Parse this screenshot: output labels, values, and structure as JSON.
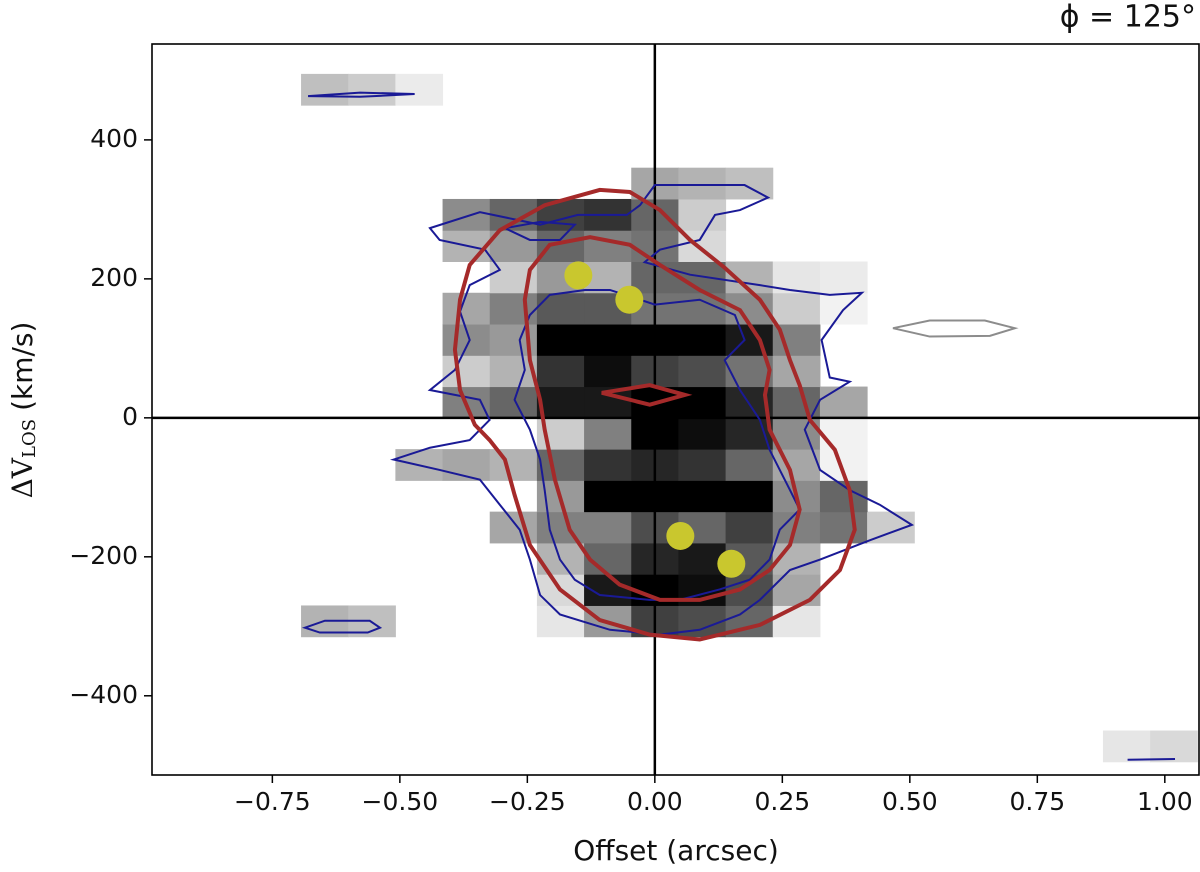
{
  "chart_data": {
    "type": "heatmap",
    "title": "ϕ = 125°",
    "xlabel": "Offset (arcsec)",
    "ylabel": {
      "main": "ΔV",
      "sub": "LOS",
      "unit": "(km/s)"
    },
    "xlim": [
      -0.986,
      1.069
    ],
    "ylim": [
      -514,
      538
    ],
    "xticks": [
      {
        "value": -0.75,
        "label": "−0.75"
      },
      {
        "value": -0.5,
        "label": "−0.50"
      },
      {
        "value": -0.25,
        "label": "−0.25"
      },
      {
        "value": 0,
        "label": "0.00"
      },
      {
        "value": 0.25,
        "label": "0.25"
      },
      {
        "value": 0.5,
        "label": "0.50"
      },
      {
        "value": 0.75,
        "label": "0.75"
      },
      {
        "value": 1,
        "label": "1.00"
      }
    ],
    "yticks": [
      {
        "value": -400,
        "label": "−400"
      },
      {
        "value": -200,
        "label": "−200"
      },
      0,
      200,
      400
    ],
    "cmap": "Greys",
    "reference_lines": {
      "x": [
        0
      ],
      "y": [
        0
      ]
    },
    "cells": {
      "xbins": [
        -0.69375,
        -0.60125,
        -0.50875,
        -0.41625,
        -0.32375,
        -0.23125,
        -0.13875,
        -0.04625,
        0.04625,
        0.13875,
        0.23125,
        0.32375,
        0.41625,
        0.50875,
        0.60125,
        0.69375,
        0.78625,
        0.87875,
        0.97125,
        1.06375
      ],
      "ybins": [
        -495,
        -450,
        -405,
        -360,
        -315,
        -270,
        -225,
        -180,
        -135,
        -90,
        -45,
        0,
        45,
        90,
        135,
        180,
        225,
        270,
        315,
        360,
        405,
        450,
        495
      ],
      "z": [
        [
          null,
          null,
          null,
          null,
          null,
          null,
          null,
          null,
          null,
          null,
          null,
          null,
          null,
          null,
          null,
          null,
          null,
          0.1,
          0.15
        ],
        [
          null,
          null,
          null,
          null,
          null,
          null,
          null,
          null,
          null,
          null,
          null,
          null,
          null,
          null,
          null,
          null,
          null,
          null,
          null
        ],
        [
          null,
          null,
          null,
          null,
          null,
          null,
          null,
          null,
          null,
          null,
          null,
          null,
          null,
          null,
          null,
          null,
          null,
          null,
          null
        ],
        [
          null,
          null,
          null,
          null,
          null,
          null,
          null,
          null,
          null,
          null,
          null,
          null,
          null,
          null,
          null,
          null,
          null,
          null,
          null
        ],
        [
          0.3,
          0.25,
          null,
          null,
          null,
          0.1,
          0.4,
          0.75,
          0.7,
          0.6,
          0.1,
          null,
          null,
          null,
          null,
          null,
          null,
          null,
          null
        ],
        [
          null,
          null,
          null,
          null,
          null,
          0.15,
          0.9,
          1,
          0.95,
          0.7,
          0.35,
          null,
          null,
          null,
          null,
          null,
          null,
          null,
          null
        ],
        [
          null,
          null,
          null,
          null,
          null,
          0.3,
          0.6,
          0.85,
          0.9,
          0.65,
          0.3,
          null,
          null,
          null,
          null,
          null,
          null,
          null,
          null
        ],
        [
          null,
          null,
          null,
          null,
          0.35,
          0.5,
          0.5,
          0.7,
          0.6,
          0.75,
          0.5,
          0.55,
          0.2,
          null,
          null,
          null,
          null,
          null,
          null
        ],
        [
          null,
          null,
          null,
          null,
          null,
          0.4,
          1,
          1,
          1,
          1,
          0.45,
          0.6,
          null,
          null,
          null,
          null,
          null,
          null,
          null
        ],
        [
          null,
          null,
          0.3,
          0.35,
          0.3,
          0.6,
          0.8,
          0.85,
          0.8,
          0.6,
          0.35,
          0.05,
          null,
          null,
          null,
          null,
          null,
          null,
          null
        ],
        [
          null,
          null,
          null,
          null,
          null,
          0.2,
          0.5,
          1,
          0.95,
          0.85,
          0.45,
          0.05,
          null,
          null,
          null,
          null,
          null,
          null,
          null
        ],
        [
          null,
          null,
          null,
          0.5,
          0.6,
          0.9,
          0.9,
          1,
          1,
          0.85,
          0.6,
          0.35,
          null,
          null,
          null,
          null,
          null,
          null,
          null
        ],
        [
          null,
          null,
          null,
          0.2,
          0.3,
          0.8,
          0.95,
          0.75,
          0.7,
          0.55,
          0.35,
          null,
          null,
          null,
          null,
          null,
          null,
          null,
          null
        ],
        [
          null,
          null,
          null,
          0.45,
          0.4,
          1,
          1,
          1,
          1,
          0.9,
          0.5,
          null,
          null,
          null,
          null,
          null,
          null,
          null,
          null
        ],
        [
          null,
          null,
          null,
          0.35,
          0.5,
          0.65,
          0.65,
          0.55,
          0.55,
          0.45,
          0.2,
          0.05,
          null,
          null,
          null,
          null,
          null,
          null,
          null
        ],
        [
          null,
          null,
          null,
          null,
          0.2,
          0.4,
          0.3,
          0.6,
          0.6,
          0.3,
          0.1,
          0.08,
          null,
          null,
          null,
          null,
          null,
          null,
          null
        ],
        [
          null,
          null,
          null,
          0.3,
          0.4,
          0.6,
          0.5,
          0.55,
          0.15,
          null,
          null,
          null,
          null,
          null,
          null,
          null,
          null,
          null,
          null
        ],
        [
          null,
          null,
          null,
          0.45,
          0.6,
          0.75,
          0.8,
          0.6,
          0.2,
          null,
          null,
          null,
          null,
          null,
          null,
          null,
          null,
          null,
          null
        ],
        [
          null,
          null,
          null,
          null,
          null,
          null,
          null,
          0.35,
          0.3,
          0.25,
          null,
          null,
          null,
          null,
          null,
          null,
          null,
          null,
          null
        ],
        [
          null,
          null,
          null,
          null,
          null,
          null,
          null,
          null,
          null,
          null,
          null,
          null,
          null,
          null,
          null,
          null,
          null,
          null,
          null
        ],
        [
          null,
          null,
          null,
          null,
          null,
          null,
          null,
          null,
          null,
          null,
          null,
          null,
          null,
          null,
          null,
          null,
          null,
          null,
          null
        ],
        [
          0.25,
          0.2,
          0.08,
          null,
          null,
          null,
          null,
          null,
          null,
          null,
          null,
          null,
          null,
          null,
          null,
          null,
          null,
          null,
          null
        ]
      ]
    },
    "contours": [
      {
        "color": "#1a1a96",
        "linewidth": 2,
        "x": [
          -0.441,
          -0.343,
          -0.225,
          -0.151,
          -0.055,
          -0.029,
          0,
          0.088,
          0.176,
          0.222,
          0.167,
          0.118,
          0.088,
          0.01,
          -0.02,
          0.069,
          0.206,
          0.265,
          0.343,
          0.406,
          0.369,
          0.327,
          0.343,
          0.382,
          0.324,
          0.294,
          0.324,
          0.382,
          0.441,
          0.504,
          0.422,
          0.324,
          0.265,
          0.206,
          0.167,
          0.088,
          0.01,
          -0.088,
          -0.186,
          -0.225,
          -0.245,
          -0.265,
          -0.304,
          -0.343,
          -0.422,
          -0.512,
          -0.441,
          -0.363,
          -0.324,
          -0.343,
          -0.441,
          -0.392,
          -0.363,
          -0.382,
          -0.363,
          -0.304,
          -0.333,
          -0.422
        ],
        "y": [
          273,
          296,
          278,
          292,
          292,
          306,
          335,
          335,
          335,
          317,
          299,
          292,
          256,
          242,
          224,
          206,
          191,
          184,
          177,
          180,
          155,
          112,
          58,
          52,
          26,
          -17,
          -75,
          -104,
          -125,
          -154,
          -176,
          -204,
          -219,
          -262,
          -283,
          -305,
          -312,
          -305,
          -283,
          -255,
          -204,
          -161,
          -125,
          -89,
          -75,
          -60,
          -43,
          -32,
          -3,
          26,
          40,
          69,
          112,
          153,
          191,
          213,
          242,
          256
        ]
      },
      {
        "color": "#1a1a96",
        "linewidth": 2,
        "x": [
          -0.294,
          -0.225,
          -0.157,
          -0.186,
          -0.245
        ],
        "y": [
          273,
          282,
          278,
          256,
          256
        ]
      },
      {
        "color": "#1a1a96",
        "linewidth": 2,
        "x": [
          -0.245,
          -0.206,
          -0.137,
          -0.088,
          -0.029,
          0,
          0.088,
          0.157,
          0.176,
          0.137,
          0.167,
          0.206,
          0.225,
          0.265,
          0.284,
          0.245,
          0.225,
          0.186,
          0.127,
          0.049,
          -0.01,
          -0.108,
          -0.157,
          -0.186,
          -0.206,
          -0.216,
          -0.225,
          -0.245,
          -0.275,
          -0.255,
          -0.265
        ],
        "y": [
          148,
          177,
          184,
          184,
          170,
          163,
          170,
          148,
          112,
          83,
          40,
          -3,
          -46,
          -104,
          -132,
          -161,
          -204,
          -233,
          -247,
          -262,
          -262,
          -255,
          -233,
          -204,
          -161,
          -104,
          -60,
          -17,
          26,
          69,
          112
        ]
      },
      {
        "color": "#1a1a96",
        "linewidth": 2,
        "x": [
          -0.68,
          -0.578,
          -0.471,
          -0.578
        ],
        "y": [
          463,
          468,
          466,
          462
        ]
      },
      {
        "color": "#1a1a96",
        "linewidth": 2,
        "x": [
          -0.686,
          -0.647,
          -0.559,
          -0.539,
          -0.563,
          -0.657
        ],
        "y": [
          -302,
          -292,
          -292,
          -302,
          -309,
          -309
        ]
      },
      {
        "color": "#1a1a96",
        "linewidth": 2,
        "x": [
          0.927,
          1.02
        ],
        "y": [
          -492,
          -491
        ]
      },
      {
        "color": "#8c8c8c",
        "linewidth": 2,
        "x": [
          0.467,
          0.539,
          0.647,
          0.706,
          0.657,
          0.539
        ],
        "y": [
          129,
          140,
          140,
          129,
          118,
          117
        ]
      },
      {
        "color": "#a52a2a",
        "linewidth": 4,
        "x": [
          -0.382,
          -0.363,
          -0.304,
          -0.216,
          -0.108,
          -0.049,
          0.01,
          0.069,
          0.137,
          0.206,
          0.245,
          0.265,
          0.284,
          0.304,
          0.353,
          0.382,
          0.392,
          0.363,
          0.304,
          0.206,
          0.088,
          -0.01,
          -0.108,
          -0.186,
          -0.245,
          -0.275,
          -0.294,
          -0.324,
          -0.353,
          -0.382,
          -0.392
        ],
        "y": [
          170,
          220,
          270,
          306,
          328,
          325,
          299,
          256,
          216,
          170,
          127,
          83,
          47,
          -3,
          -46,
          -104,
          -161,
          -219,
          -262,
          -298,
          -319,
          -312,
          -291,
          -247,
          -183,
          -111,
          -60,
          -32,
          -10,
          40,
          98
        ]
      },
      {
        "color": "#a52a2a",
        "linewidth": 4,
        "x": [
          -0.255,
          -0.245,
          -0.206,
          -0.127,
          -0.049,
          0.01,
          0.088,
          0.167,
          0.206,
          0.225,
          0.216,
          0.225,
          0.265,
          0.284,
          0.265,
          0.225,
          0.167,
          0.088,
          0.01,
          -0.069,
          -0.127,
          -0.167,
          -0.196,
          -0.216,
          -0.225,
          -0.245
        ],
        "y": [
          170,
          213,
          249,
          260,
          249,
          220,
          184,
          155,
          112,
          69,
          33,
          -17,
          -75,
          -132,
          -183,
          -219,
          -247,
          -262,
          -262,
          -240,
          -204,
          -161,
          -89,
          -17,
          26,
          83
        ]
      },
      {
        "color": "#a52a2a",
        "linewidth": 4,
        "x": [
          -0.104,
          -0.01,
          0.059,
          -0.01
        ],
        "y": [
          36,
          47,
          33,
          19
        ]
      }
    ],
    "scatter": {
      "color": "#c9c72e",
      "x": [
        -0.15,
        -0.05,
        0.05,
        0.15
      ],
      "y": [
        205,
        170,
        -170,
        -210
      ]
    }
  }
}
